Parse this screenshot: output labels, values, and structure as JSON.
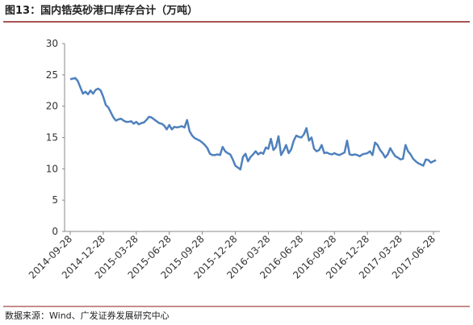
{
  "chart_data": {
    "type": "line",
    "title": "图13：国内锆英砂港口库存合计（万吨）",
    "source": "数据来源：Wind、广发证券发展研究中心",
    "categories": [
      "2014-09-28",
      null,
      null,
      null,
      null,
      null,
      null,
      null,
      null,
      null,
      null,
      null,
      null,
      "2014-12-28",
      null,
      null,
      null,
      null,
      null,
      null,
      null,
      null,
      null,
      null,
      null,
      null,
      "2015-03-28",
      null,
      null,
      null,
      null,
      null,
      null,
      null,
      null,
      null,
      null,
      null,
      null,
      "2015-06-28",
      null,
      null,
      null,
      null,
      null,
      null,
      null,
      null,
      null,
      null,
      null,
      null,
      "2015-09-28",
      null,
      null,
      null,
      null,
      null,
      null,
      null,
      null,
      null,
      null,
      null,
      null,
      "2015-12-28",
      null,
      null,
      null,
      null,
      null,
      null,
      null,
      null,
      null,
      null,
      null,
      null,
      "2016-03-28",
      null,
      null,
      null,
      null,
      null,
      null,
      null,
      null,
      null,
      null,
      null,
      null,
      "2016-06-28",
      null,
      null,
      null,
      null,
      null,
      null,
      null,
      null,
      null,
      null,
      null,
      null,
      "2016-09-28",
      null,
      null,
      null,
      null,
      null,
      null,
      null,
      null,
      null,
      null,
      null,
      null,
      "2016-12-28",
      null,
      null,
      null,
      null,
      null,
      null,
      null,
      null,
      null,
      null,
      null,
      null,
      "2017-03-28",
      null,
      null,
      null,
      null,
      null,
      null,
      null,
      null,
      null,
      null,
      null,
      null,
      "2017-06-28",
      null
    ],
    "values": [
      24.3,
      24.4,
      24.5,
      24.0,
      23.0,
      22.0,
      22.3,
      21.9,
      22.5,
      22.0,
      22.6,
      22.8,
      22.5,
      21.5,
      20.2,
      19.8,
      19.0,
      18.2,
      17.7,
      17.9,
      18.0,
      17.7,
      17.5,
      17.5,
      17.6,
      17.2,
      17.5,
      17.1,
      17.3,
      17.4,
      17.8,
      18.3,
      18.2,
      17.9,
      17.6,
      17.3,
      17.2,
      16.9,
      16.3,
      17.0,
      16.3,
      16.7,
      16.6,
      16.7,
      16.8,
      16.6,
      17.8,
      16.0,
      15.3,
      14.9,
      14.7,
      14.5,
      14.2,
      13.8,
      13.3,
      12.4,
      12.2,
      12.2,
      12.3,
      12.2,
      13.5,
      12.8,
      12.5,
      12.3,
      11.5,
      10.5,
      10.2,
      9.9,
      11.9,
      12.4,
      11.2,
      11.9,
      12.3,
      12.8,
      12.3,
      12.6,
      12.4,
      13.4,
      13.2,
      14.8,
      13.0,
      13.5,
      15.2,
      12.2,
      12.9,
      13.8,
      12.5,
      13.1,
      14.5,
      15.3,
      15.1,
      15.0,
      15.5,
      16.5,
      14.5,
      15.0,
      13.2,
      12.8,
      13.0,
      13.8,
      12.5,
      12.6,
      12.4,
      12.3,
      12.5,
      12.3,
      12.2,
      12.4,
      12.6,
      14.5,
      12.3,
      12.2,
      12.3,
      12.2,
      12.0,
      12.3,
      12.4,
      12.5,
      12.8,
      12.2,
      14.2,
      13.8,
      13.0,
      12.5,
      11.8,
      12.3,
      13.3,
      12.6,
      12.0,
      11.8,
      11.5,
      11.6,
      13.8,
      12.8,
      12.3,
      11.6,
      11.2,
      10.9,
      10.7,
      10.5,
      11.5,
      11.4,
      11.0,
      11.2,
      11.4
    ],
    "color": "#4f81bd",
    "ylim": [
      0,
      30
    ],
    "yticks": [
      0,
      5,
      10,
      15,
      20,
      25,
      30
    ],
    "grid": false
  }
}
